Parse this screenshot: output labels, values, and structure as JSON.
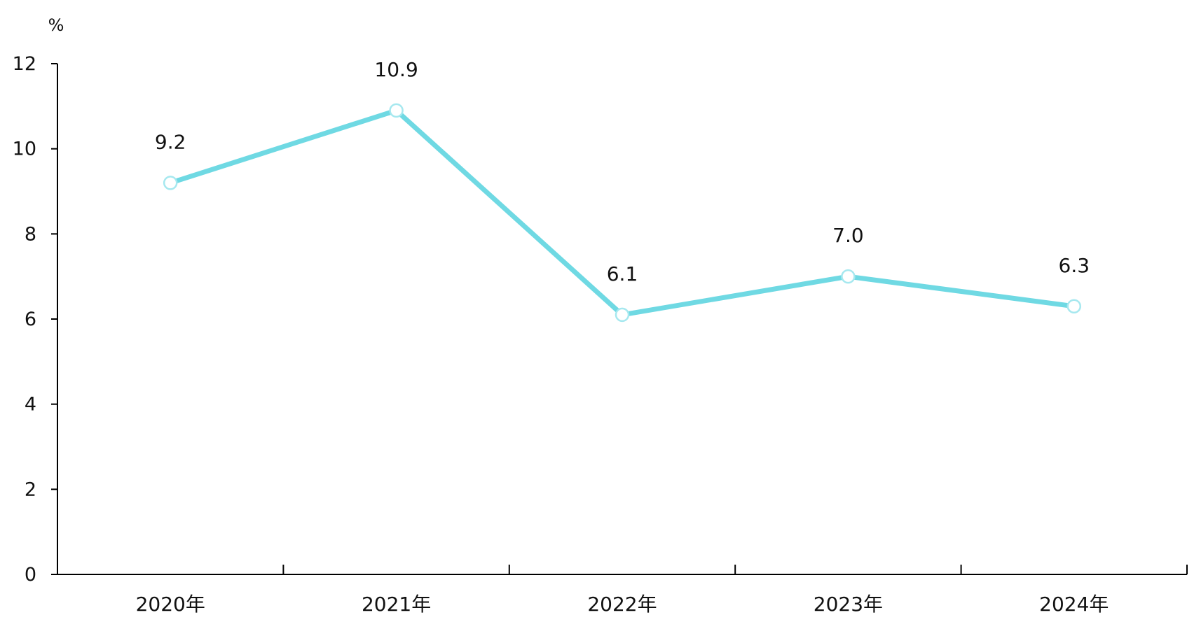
{
  "chart_data": {
    "type": "line",
    "title": "",
    "xlabel": "",
    "ylabel": "%",
    "categories": [
      "2020年",
      "2021年",
      "2022年",
      "2023年",
      "2024年"
    ],
    "series": [
      {
        "values": [
          9.2,
          10.9,
          6.1,
          7.0,
          6.3
        ],
        "labels": [
          "9.2",
          "10.9",
          "6.1",
          "7.0",
          "6.3"
        ],
        "color": "#6fd9e3",
        "marker_stroke": "#a6e8ef"
      }
    ],
    "ylim": [
      0,
      12
    ],
    "yticks": [
      0,
      2,
      4,
      6,
      8,
      10,
      12
    ],
    "ytick_labels": [
      "0",
      "2",
      "4",
      "6",
      "8",
      "10",
      "12"
    ],
    "grid": false,
    "legend": "none"
  }
}
